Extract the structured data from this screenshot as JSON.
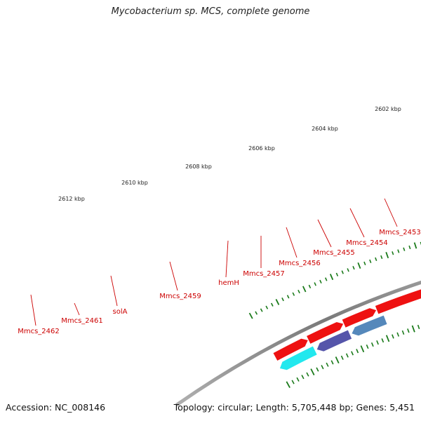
{
  "title": "Mycobacterium sp. MCS, complete genome",
  "footer": {
    "accession": "Accession: NC_008146",
    "topology": "Topology: circular; Length: 5,705,448 bp; Genes: 5,451"
  },
  "colors": {
    "backbone": "#888888",
    "tick": "#1a7a1a",
    "label": "#cc0000",
    "gene_red": "#ee1111",
    "gene_blue": "#1010dd",
    "gene_lightblue": "#7766dd",
    "gene_grey": "#c4c4c4",
    "gene_cyan": "#22e8ee",
    "gene_steel": "#5588bb",
    "gene_darkslate": "#5555aa",
    "gene_olive": "#6a8a22"
  },
  "scale_labels": [
    "2602 kbp",
    "2604 kbp",
    "2606 kbp",
    "2608 kbp",
    "2610 kbp",
    "2612 kbp"
  ],
  "gene_labels": [
    "Mmcs_2462",
    "Mmcs_2461",
    "solA",
    "Mmcs_2459",
    "hemH",
    "Mmcs_2457",
    "Mmcs_2456",
    "Mmcs_2455",
    "Mmcs_2454",
    "Mmcs_2453"
  ]
}
